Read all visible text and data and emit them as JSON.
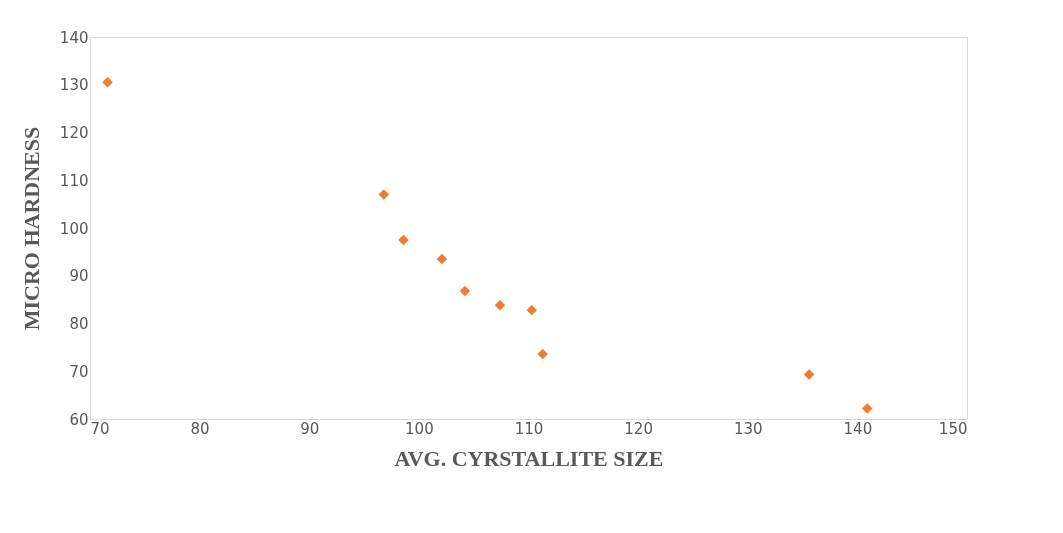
{
  "chart_data": {
    "type": "scatter",
    "xlabel": "AVG. CYRSTALLITE SIZE",
    "ylabel": "MICRO HARDNESS",
    "x": [
      71.6,
      96.8,
      98.6,
      102.1,
      104.2,
      107.4,
      110.3,
      111.3,
      135.6,
      140.9
    ],
    "series": [
      {
        "color": "#ed7d31",
        "values": [
          130.5,
          107,
          97.5,
          93.5,
          86.8,
          83.8,
          82.8,
          73.6,
          69.3,
          62.2
        ]
      }
    ],
    "xlim": [
      70,
      150
    ],
    "xticks": [
      70,
      80,
      90,
      100,
      110,
      120,
      130,
      140,
      150
    ],
    "ylim": [
      60,
      140
    ],
    "yticks": [
      60,
      70,
      80,
      90,
      100,
      110,
      120,
      130,
      140
    ],
    "marker": "diamond",
    "grid": false
  }
}
